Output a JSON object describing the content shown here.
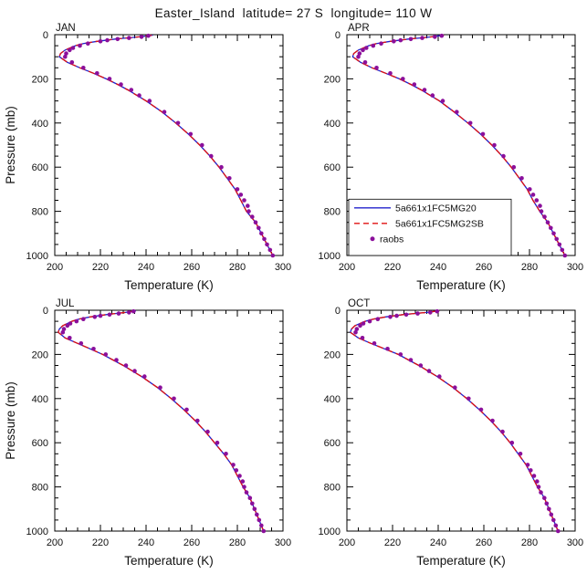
{
  "chart_data": {
    "type": "line",
    "title": "Easter_Island  latitude= 27 S  longitude= 110 W",
    "x_axis": {
      "label": "Temperature (K)",
      "min": 200,
      "max": 300,
      "major_step": 20,
      "minor_step": 5,
      "tick_labels": [
        "200",
        "220",
        "240",
        "260",
        "280",
        "300"
      ]
    },
    "y_axis": {
      "label": "Pressure (mb)",
      "min": 0,
      "max": 1000,
      "major_step": 200,
      "minor_step": 50,
      "direction": "increasing downward",
      "tick_labels": [
        "0",
        "200",
        "400",
        "600",
        "800",
        "1000"
      ]
    },
    "model_levels_mb": [
      1000,
      950,
      900,
      850,
      800,
      750,
      700,
      650,
      600,
      550,
      500,
      450,
      400,
      350,
      300,
      250,
      225,
      200,
      175,
      150,
      125,
      100,
      85,
      70,
      50,
      40,
      30,
      20,
      15,
      10,
      5,
      2
    ],
    "obs_levels_mb": [
      1000,
      975,
      950,
      925,
      900,
      875,
      850,
      825,
      800,
      775,
      750,
      725,
      700,
      650,
      600,
      550,
      500,
      450,
      400,
      350,
      300,
      275,
      250,
      225,
      200,
      175,
      150,
      125,
      100,
      85,
      70,
      60,
      50,
      40,
      30,
      25,
      20,
      15,
      10,
      5
    ],
    "legend": {
      "panel": "APR",
      "position": "inside lower-left",
      "items": [
        {
          "label": "5a661x1FC5MG20",
          "swatch": "solid-line",
          "color": "#2222cc"
        },
        {
          "label": "5a661x1FC5MG2SB",
          "swatch": "dashed-line",
          "color": "#e01010"
        },
        {
          "label": "raobs",
          "swatch": "dot",
          "color": "#8b0f9b"
        }
      ]
    },
    "panels": [
      {
        "title": "JAN",
        "series": [
          {
            "name": "5a661x1FC5MG20",
            "kind": "line",
            "style": "solid",
            "color": "#2222cc",
            "levels": "model_levels_mb",
            "temperature_k": [
              295.5,
              293,
              290.5,
              288,
              284,
              281.5,
              279,
              275.5,
              272,
              268,
              263.5,
              258.5,
              253,
              247,
              240,
              232,
              227.5,
              222.5,
              217,
              211,
              205.5,
              202,
              202.5,
              204.5,
              209,
              212.5,
              218.5,
              226.5,
              231.5,
              237,
              241,
              243
            ]
          },
          {
            "name": "5a661x1FC5MG2SB",
            "kind": "line",
            "style": "dashed",
            "color": "#e01010",
            "levels": "model_levels_mb",
            "temperature_k": [
              295.5,
              293,
              290.5,
              288,
              284,
              281.5,
              279,
              275.5,
              272,
              268,
              263.5,
              258.5,
              253,
              247,
              240,
              232,
              227.5,
              222.5,
              217,
              211,
              205.5,
              202,
              202.5,
              204.5,
              209,
              212.5,
              218.5,
              226.5,
              231.5,
              237,
              241,
              243
            ]
          },
          {
            "name": "raobs",
            "kind": "scatter",
            "color": "#8b0f9b",
            "levels": "obs_levels_mb",
            "temperature_k": [
              295.5,
              294.3,
              293,
              291.8,
              290.5,
              289.3,
              288,
              286.5,
              285,
              284.5,
              283,
              281.5,
              280,
              276.5,
              273,
              268.5,
              264.5,
              259.5,
              254,
              248,
              241.5,
              237,
              233.5,
              229,
              224,
              218.5,
              212.5,
              207.5,
              204.5,
              205,
              206.5,
              208,
              211,
              214.5,
              220,
              223,
              227.5,
              232.5,
              238,
              241
            ]
          }
        ]
      },
      {
        "title": "APR",
        "series": [
          {
            "name": "5a661x1FC5MG20",
            "kind": "line",
            "style": "solid",
            "color": "#2222cc",
            "levels": "model_levels_mb",
            "temperature_k": [
              295.5,
              293,
              290.5,
              288,
              284.5,
              281.5,
              279,
              275.5,
              272,
              268,
              263.5,
              258.5,
              253,
              247,
              240.5,
              232.5,
              228,
              223,
              217,
              211,
              206,
              202.5,
              203,
              205,
              209.5,
              213,
              219,
              227,
              232,
              237,
              240.5,
              242.5
            ]
          },
          {
            "name": "5a661x1FC5MG2SB",
            "kind": "line",
            "style": "dashed",
            "color": "#e01010",
            "levels": "model_levels_mb",
            "temperature_k": [
              295.5,
              293,
              290.5,
              288,
              284.5,
              281.5,
              279,
              275.5,
              272,
              268,
              263.5,
              258.5,
              253,
              247,
              240.5,
              232.5,
              228,
              223,
              217,
              211,
              206,
              202.5,
              203,
              205,
              209.5,
              213,
              219,
              227,
              232,
              237,
              240.5,
              242.5
            ]
          },
          {
            "name": "raobs",
            "kind": "scatter",
            "color": "#8b0f9b",
            "levels": "obs_levels_mb",
            "temperature_k": [
              295.5,
              294.3,
              293.1,
              291.9,
              290.6,
              289.3,
              288,
              286.6,
              285.2,
              284.6,
              283.1,
              281.6,
              280.1,
              276.6,
              273.1,
              268.6,
              264.6,
              259.6,
              254.1,
              248.1,
              242,
              237.5,
              234,
              229.5,
              224.5,
              219,
              213,
              208,
              205,
              205.5,
              207,
              208.5,
              211.5,
              215,
              220.5,
              223.5,
              228,
              233,
              238.5,
              241.5
            ]
          }
        ]
      },
      {
        "title": "JUL",
        "series": [
          {
            "name": "5a661x1FC5MG20",
            "kind": "line",
            "style": "solid",
            "color": "#2222cc",
            "levels": "model_levels_mb",
            "temperature_k": [
              291.5,
              289.5,
              287.5,
              285.5,
              282.5,
              280,
              277.5,
              274,
              270,
              266,
              261.5,
              256.5,
              251,
              245,
              238,
              230,
              225.5,
              221,
              215.5,
              210,
              204.5,
              201.5,
              202,
              203.5,
              207.5,
              210.5,
              215.5,
              222.5,
              226.5,
              231,
              234,
              235.5
            ]
          },
          {
            "name": "5a661x1FC5MG2SB",
            "kind": "line",
            "style": "dashed",
            "color": "#e01010",
            "levels": "model_levels_mb",
            "temperature_k": [
              291.5,
              289.5,
              287.5,
              285.5,
              282.5,
              280,
              277.5,
              274,
              270,
              266,
              261.5,
              256.5,
              251,
              245,
              238,
              230,
              225.5,
              221,
              215.5,
              210,
              204.5,
              201.5,
              202,
              203.5,
              207.5,
              210.5,
              215.5,
              222.5,
              226.5,
              231,
              234,
              235.5
            ]
          },
          {
            "name": "raobs",
            "kind": "scatter",
            "color": "#8b0f9b",
            "levels": "obs_levels_mb",
            "temperature_k": [
              291.5,
              290.5,
              289.5,
              288.5,
              287.5,
              286.5,
              285.5,
              284,
              283,
              282.3,
              281,
              279.5,
              278.2,
              275,
              271.2,
              267,
              262.5,
              257.8,
              252.2,
              246.2,
              239.3,
              235,
              231.2,
              227,
              222.3,
              217,
              211.5,
              206.5,
              203.5,
              204,
              205.5,
              206.8,
              209.5,
              212.5,
              217.5,
              220,
              224,
              228,
              232.5,
              234.5
            ]
          }
        ]
      },
      {
        "title": "OCT",
        "series": [
          {
            "name": "5a661x1FC5MG20",
            "kind": "line",
            "style": "solid",
            "color": "#2222cc",
            "levels": "model_levels_mb",
            "temperature_k": [
              292.5,
              290.5,
              288.5,
              286.5,
              283.5,
              281,
              278.5,
              275,
              271.5,
              267.5,
              263,
              258,
              252.5,
              246.5,
              239.5,
              231.5,
              227,
              222.5,
              216.5,
              210.5,
              205,
              201.5,
              202,
              203.5,
              208,
              211.5,
              217,
              224.5,
              229.5,
              235,
              238.5,
              240.5
            ]
          },
          {
            "name": "5a661x1FC5MG2SB",
            "kind": "line",
            "style": "dashed",
            "color": "#e01010",
            "levels": "model_levels_mb",
            "temperature_k": [
              292.5,
              290.5,
              288.5,
              286.5,
              283.5,
              281,
              278.5,
              275,
              271.5,
              267.5,
              263,
              258,
              252.5,
              246.5,
              239.5,
              231.5,
              227,
              222.5,
              216.5,
              210.5,
              205,
              201.5,
              202,
              203.5,
              208,
              211.5,
              217,
              224.5,
              229.5,
              235,
              238.5,
              240.5
            ]
          },
          {
            "name": "raobs",
            "kind": "scatter",
            "color": "#8b0f9b",
            "levels": "obs_levels_mb",
            "temperature_k": [
              292.5,
              291.5,
              290.5,
              289.5,
              288.5,
              287.5,
              286.5,
              285,
              284,
              283.3,
              282,
              280.5,
              279.2,
              276,
              272.3,
              268.2,
              263.8,
              258.8,
              253.3,
              247.3,
              240.5,
              236,
              232.3,
              228,
              223.5,
              217.8,
              212,
              206.8,
              203.8,
              204.3,
              205.8,
              207.2,
              210,
              213.5,
              219,
              221.8,
              226,
              231,
              236.5,
              239.5
            ]
          }
        ]
      }
    ]
  }
}
